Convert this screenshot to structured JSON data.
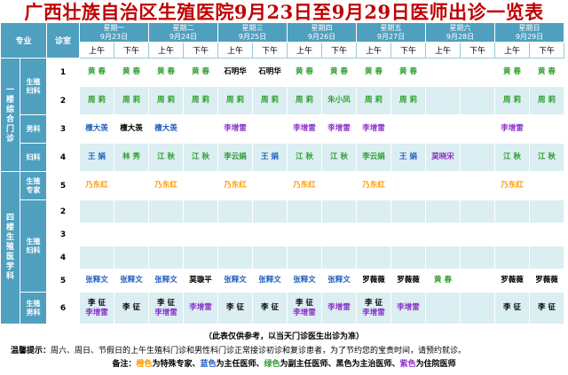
{
  "title": "广西壮族自治区生殖医院9月23日至9月29日医师出诊一览表",
  "colors": {
    "orange": "#ff9900",
    "blue": "#1f5fbf",
    "green": "#2e9e2e",
    "black": "#000000",
    "purple": "#8b32c8",
    "header": "#4f9fbf"
  },
  "header": {
    "specialty": "专业",
    "room": "诊室",
    "am": "上午",
    "pm": "下午"
  },
  "days": [
    {
      "week": "星期一",
      "date": "9月23日"
    },
    {
      "week": "星期二",
      "date": "9月24日"
    },
    {
      "week": "星期三",
      "date": "9月25日"
    },
    {
      "week": "星期四",
      "date": "9月26日"
    },
    {
      "week": "星期五",
      "date": "9月27日"
    },
    {
      "week": "星期六",
      "date": "9月28日"
    },
    {
      "week": "星期日",
      "date": "9月29日"
    }
  ],
  "groups": [
    {
      "label": "一楼综合门诊"
    },
    {
      "label": "四楼生殖医学科"
    }
  ],
  "specialties": [
    {
      "label": "生殖妇科"
    },
    {
      "label": "男科"
    },
    {
      "label": "妇科"
    },
    {
      "label": "生殖专家"
    },
    {
      "label": "生殖妇科"
    },
    {
      "label": "生殖男科"
    }
  ],
  "rows": [
    {
      "room": "1",
      "cells": [
        [
          "黄 春"
        ],
        [
          "黄 春"
        ],
        [
          "黄 春"
        ],
        [
          "黄 春"
        ],
        [
          "石明华"
        ],
        [
          "石明华"
        ],
        [
          "黄 春"
        ],
        [
          "黄 春"
        ],
        [
          "黄 春"
        ],
        [
          "黄 春"
        ],
        [
          ""
        ],
        [
          ""
        ],
        [
          "黄 春"
        ],
        [
          "黄 春"
        ]
      ],
      "colors": [
        "green",
        "green",
        "green",
        "green",
        "black",
        "black",
        "green",
        "green",
        "green",
        "green",
        "black",
        "black",
        "green",
        "green"
      ]
    },
    {
      "room": "2",
      "cells": [
        [
          "周 莉"
        ],
        [
          "周 莉"
        ],
        [
          "周 莉"
        ],
        [
          "周 莉"
        ],
        [
          "周 莉"
        ],
        [
          "周 莉"
        ],
        [
          "周 莉"
        ],
        [
          "朱小凤"
        ],
        [
          "周 莉"
        ],
        [
          "周 莉"
        ],
        [
          ""
        ],
        [
          ""
        ],
        [
          "周 莉"
        ],
        [
          "周 莉"
        ]
      ],
      "colors": [
        "green",
        "green",
        "green",
        "green",
        "green",
        "green",
        "green",
        "green",
        "green",
        "green",
        "black",
        "black",
        "green",
        "green"
      ]
    },
    {
      "room": "3",
      "cells": [
        [
          "檀大羡"
        ],
        [
          "檀大羡"
        ],
        [
          "檀大羡"
        ],
        [
          ""
        ],
        [
          "李增雷"
        ],
        [
          ""
        ],
        [
          "李增雷"
        ],
        [
          "李增雷"
        ],
        [
          "李增雷"
        ],
        [
          ""
        ],
        [
          ""
        ],
        [
          ""
        ],
        [
          "李增雷"
        ],
        [
          ""
        ]
      ],
      "colors": [
        "blue",
        "black",
        "blue",
        "black",
        "purple",
        "black",
        "purple",
        "purple",
        "purple",
        "black",
        "black",
        "black",
        "purple",
        "black"
      ]
    },
    {
      "room": "4",
      "cells": [
        [
          "王 娟"
        ],
        [
          "林 秀"
        ],
        [
          "江 秋"
        ],
        [
          "江 秋"
        ],
        [
          "李云娟"
        ],
        [
          "王 娟"
        ],
        [
          "江 秋"
        ],
        [
          "江 秋"
        ],
        [
          "李云娟"
        ],
        [
          "王 娟"
        ],
        [
          "莫晓宋"
        ],
        [
          ""
        ],
        [
          "江 秋"
        ],
        [
          "江 秋"
        ]
      ],
      "colors": [
        "blue",
        "green",
        "green",
        "green",
        "green",
        "blue",
        "green",
        "green",
        "green",
        "blue",
        "purple",
        "black",
        "green",
        "green"
      ]
    },
    {
      "room": "5",
      "cells": [
        [
          "乃东红"
        ],
        [
          ""
        ],
        [
          "乃东红"
        ],
        [
          ""
        ],
        [
          "乃东红"
        ],
        [
          ""
        ],
        [
          "乃东红"
        ],
        [
          ""
        ],
        [
          "乃东红"
        ],
        [
          ""
        ],
        [
          ""
        ],
        [
          ""
        ],
        [
          "乃东红"
        ],
        [
          ""
        ]
      ],
      "colors": [
        "orange",
        "black",
        "orange",
        "black",
        "orange",
        "black",
        "orange",
        "black",
        "orange",
        "black",
        "black",
        "black",
        "orange",
        "black"
      ]
    },
    {
      "room": "2",
      "cells": [
        [
          ""
        ],
        [
          ""
        ],
        [
          ""
        ],
        [
          ""
        ],
        [
          ""
        ],
        [
          ""
        ],
        [
          ""
        ],
        [
          ""
        ],
        [
          ""
        ],
        [
          ""
        ],
        [
          ""
        ],
        [
          ""
        ],
        [
          ""
        ],
        [
          ""
        ]
      ],
      "colors": [
        "black",
        "black",
        "black",
        "black",
        "black",
        "black",
        "black",
        "black",
        "black",
        "black",
        "black",
        "black",
        "black",
        "black"
      ]
    },
    {
      "room": "3",
      "cells": [
        [
          ""
        ],
        [
          ""
        ],
        [
          ""
        ],
        [
          ""
        ],
        [
          ""
        ],
        [
          ""
        ],
        [
          ""
        ],
        [
          ""
        ],
        [
          ""
        ],
        [
          ""
        ],
        [
          ""
        ],
        [
          ""
        ],
        [
          ""
        ],
        [
          ""
        ]
      ],
      "colors": [
        "black",
        "black",
        "black",
        "black",
        "black",
        "black",
        "black",
        "black",
        "black",
        "black",
        "black",
        "black",
        "black",
        "black"
      ]
    },
    {
      "room": "4",
      "cells": [
        [
          ""
        ],
        [
          ""
        ],
        [
          ""
        ],
        [
          ""
        ],
        [
          ""
        ],
        [
          ""
        ],
        [
          ""
        ],
        [
          ""
        ],
        [
          ""
        ],
        [
          ""
        ],
        [
          ""
        ],
        [
          ""
        ],
        [
          ""
        ],
        [
          ""
        ]
      ],
      "colors": [
        "black",
        "black",
        "black",
        "black",
        "black",
        "black",
        "black",
        "black",
        "black",
        "black",
        "black",
        "black",
        "black",
        "black"
      ]
    },
    {
      "room": "5",
      "cells": [
        [
          "张释文"
        ],
        [
          "张释文"
        ],
        [
          "张释文"
        ],
        [
          "莫璇平"
        ],
        [
          "张释文"
        ],
        [
          "张释文"
        ],
        [
          "张释文"
        ],
        [
          "张释文"
        ],
        [
          "罗薇薇"
        ],
        [
          "罗薇薇"
        ],
        [
          "黄 春"
        ],
        [
          ""
        ],
        [
          "罗薇薇"
        ],
        [
          "罗薇薇"
        ]
      ],
      "colors": [
        "blue",
        "blue",
        "blue",
        "black",
        "blue",
        "blue",
        "blue",
        "blue",
        "black",
        "black",
        "green",
        "black",
        "black",
        "black"
      ]
    },
    {
      "room": "6",
      "cells": [
        [
          "李 征",
          "李增雷"
        ],
        [
          "李 征"
        ],
        [
          "李 征",
          "李增雷"
        ],
        [
          "李增雷"
        ],
        [
          "李 征"
        ],
        [
          "李 征"
        ],
        [
          "李 征",
          "李增雷"
        ],
        [
          "李增雷"
        ],
        [
          "李 征",
          "李增雷"
        ],
        [
          "李增雷"
        ],
        [
          ""
        ],
        [
          ""
        ],
        [
          "李 征"
        ],
        [
          "李 征"
        ]
      ],
      "colors": [
        [
          "black",
          "purple"
        ],
        [
          "black"
        ],
        [
          "black",
          "purple"
        ],
        [
          "purple"
        ],
        [
          "black"
        ],
        [
          "black"
        ],
        [
          "black",
          "purple"
        ],
        [
          "purple"
        ],
        [
          "black",
          "purple"
        ],
        [
          "purple"
        ],
        [
          "black"
        ],
        [
          "black"
        ],
        [
          "black"
        ],
        [
          "black"
        ]
      ]
    }
  ],
  "footer": {
    "note": "（此表仅供参考，以当天门诊医生出诊为准）",
    "tip_label": "温馨提示：",
    "tip": "周六、周日、节假日的上午生殖科门诊和男性科门诊正常接诊初诊和复诊患者，为了节约您的宝贵时间，请预约就诊。",
    "legend_label": "备注：",
    "legend": [
      {
        "color": "orange",
        "text": "橙色",
        "rest": "为特殊专家、"
      },
      {
        "color": "blue",
        "text": "蓝色",
        "rest": "为主任医师、"
      },
      {
        "color": "green",
        "text": "绿色",
        "rest": "为副主任医师、"
      },
      {
        "color": "black",
        "text": "黑色",
        "rest": "为主治医师、"
      },
      {
        "color": "purple",
        "text": "紫色",
        "rest": "为住院医师"
      }
    ]
  }
}
